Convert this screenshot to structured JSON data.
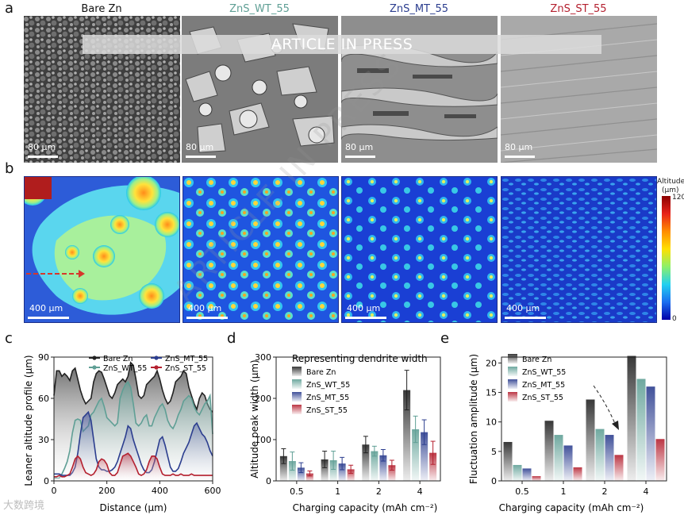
{
  "panel_letters": {
    "a": "a",
    "b": "b",
    "c": "c",
    "d": "d",
    "e": "e"
  },
  "banner": "ARTICLE IN PRESS",
  "watermark": "ARTICLE IN PRESS",
  "logo_text": "大数跨境",
  "colors": {
    "bare": "#222222",
    "wt": "#5f9f95",
    "mt": "#2c3e8f",
    "st": "#b4202f"
  },
  "panel_a": {
    "titles": [
      {
        "text": "Bare Zn",
        "color": "#111111"
      },
      {
        "text": "ZnS_WT_55",
        "color": "#5f9f95"
      },
      {
        "text": "ZnS_MT_55",
        "color": "#2c3e8f"
      },
      {
        "text": "ZnS_ST_55",
        "color": "#b4202f"
      }
    ],
    "scale_label": "80 μm"
  },
  "panel_b": {
    "scale_label": "400 μm",
    "colorbar_title": "Altitude",
    "colorbar_unit": "(μm)",
    "colorbar_max": "120",
    "colorbar_min": "0"
  },
  "chart_data": [
    {
      "panel": "c",
      "type": "area",
      "xlabel": "Distance (μm)",
      "ylabel": "Leaner altitude profile (μm)",
      "xlim": [
        0,
        600
      ],
      "ylim": [
        0,
        90
      ],
      "xticks": [
        "0",
        "200",
        "400",
        "600"
      ],
      "yticks": [
        "0",
        "30",
        "60",
        "90"
      ],
      "legend": [
        "Bare Zn",
        "ZnS_WT_55",
        "ZnS_MT_55",
        "ZnS_ST_55"
      ],
      "series": [
        {
          "name": "Bare Zn",
          "x": [
            0,
            10,
            20,
            30,
            40,
            50,
            60,
            70,
            80,
            90,
            100,
            110,
            120,
            130,
            140,
            150,
            160,
            170,
            180,
            190,
            200,
            210,
            220,
            230,
            240,
            250,
            260,
            270,
            280,
            290,
            300,
            310,
            320,
            330,
            340,
            350,
            360,
            370,
            380,
            390,
            400,
            410,
            420,
            430,
            440,
            450,
            460,
            470,
            480,
            490,
            500,
            510,
            520,
            530,
            540,
            550,
            560,
            570,
            580,
            590,
            600
          ],
          "y": [
            62,
            80,
            80,
            76,
            78,
            76,
            73,
            80,
            82,
            74,
            66,
            60,
            56,
            58,
            60,
            72,
            78,
            80,
            79,
            74,
            68,
            62,
            60,
            64,
            70,
            72,
            74,
            72,
            76,
            86,
            84,
            74,
            62,
            60,
            62,
            70,
            72,
            74,
            76,
            80,
            74,
            66,
            60,
            56,
            58,
            64,
            72,
            74,
            76,
            80,
            78,
            68,
            62,
            56,
            52,
            60,
            64,
            62,
            56,
            52,
            50
          ]
        },
        {
          "name": "ZnS_WT_55",
          "x": [
            0,
            10,
            20,
            30,
            40,
            50,
            60,
            70,
            80,
            90,
            100,
            110,
            120,
            130,
            140,
            150,
            160,
            170,
            180,
            190,
            200,
            210,
            220,
            230,
            240,
            250,
            260,
            270,
            280,
            290,
            300,
            310,
            320,
            330,
            340,
            350,
            360,
            370,
            380,
            390,
            400,
            410,
            420,
            430,
            440,
            450,
            460,
            470,
            480,
            490,
            500,
            510,
            520,
            530,
            540,
            550,
            560,
            570,
            580,
            590,
            600
          ],
          "y": [
            2,
            2,
            2,
            5,
            9,
            14,
            22,
            35,
            44,
            45,
            44,
            36,
            38,
            40,
            48,
            50,
            54,
            58,
            60,
            54,
            46,
            44,
            42,
            40,
            42,
            60,
            66,
            70,
            72,
            68,
            56,
            42,
            40,
            42,
            46,
            48,
            40,
            40,
            46,
            50,
            54,
            56,
            52,
            44,
            40,
            38,
            42,
            48,
            52,
            58,
            60,
            62,
            60,
            54,
            50,
            48,
            52,
            56,
            58,
            62,
            34
          ]
        },
        {
          "name": "ZnS_MT_55",
          "x": [
            0,
            10,
            20,
            30,
            40,
            50,
            60,
            70,
            80,
            90,
            100,
            110,
            120,
            130,
            140,
            150,
            160,
            170,
            180,
            190,
            200,
            210,
            220,
            230,
            240,
            250,
            260,
            270,
            280,
            290,
            300,
            310,
            320,
            330,
            340,
            350,
            360,
            370,
            380,
            390,
            400,
            410,
            420,
            430,
            440,
            450,
            460,
            470,
            480,
            490,
            500,
            510,
            520,
            530,
            540,
            550,
            560,
            570,
            580,
            590,
            600
          ],
          "y": [
            5,
            5,
            5,
            4,
            4,
            4,
            4,
            6,
            10,
            20,
            34,
            46,
            48,
            50,
            44,
            30,
            16,
            10,
            8,
            8,
            7,
            7,
            8,
            10,
            14,
            20,
            26,
            32,
            40,
            38,
            30,
            24,
            18,
            12,
            8,
            6,
            6,
            8,
            14,
            22,
            30,
            32,
            26,
            18,
            10,
            7,
            7,
            9,
            14,
            20,
            24,
            28,
            34,
            40,
            42,
            38,
            34,
            32,
            28,
            22,
            18
          ]
        },
        {
          "name": "ZnS_ST_55",
          "x": [
            0,
            10,
            20,
            30,
            40,
            50,
            60,
            70,
            80,
            90,
            100,
            110,
            120,
            130,
            140,
            150,
            160,
            170,
            180,
            190,
            200,
            210,
            220,
            230,
            240,
            250,
            260,
            270,
            280,
            290,
            300,
            310,
            320,
            330,
            340,
            350,
            360,
            370,
            380,
            390,
            400,
            410,
            420,
            430,
            440,
            450,
            460,
            470,
            480,
            490,
            500,
            510,
            520,
            530,
            540,
            550,
            560,
            570,
            580,
            590,
            600
          ],
          "y": [
            3,
            3,
            4,
            3,
            3,
            4,
            5,
            10,
            16,
            18,
            16,
            10,
            6,
            5,
            4,
            5,
            8,
            14,
            16,
            15,
            12,
            6,
            4,
            4,
            6,
            12,
            18,
            19,
            20,
            18,
            14,
            10,
            5,
            4,
            5,
            8,
            14,
            18,
            18,
            16,
            10,
            5,
            4,
            4,
            4,
            5,
            4,
            4,
            5,
            4,
            4,
            4,
            5,
            4,
            4,
            4,
            4,
            4,
            4,
            4,
            4
          ]
        }
      ]
    },
    {
      "panel": "d",
      "type": "bar",
      "title": "Representing dendrite width",
      "xlabel": "Charging capacity (mAh cm⁻²)",
      "ylabel": "Altitude peak width (μm)",
      "categories": [
        "0.5",
        "1",
        "2",
        "4"
      ],
      "ylim": [
        0,
        300
      ],
      "yticks": [
        "0",
        "100",
        "200",
        "300"
      ],
      "series": [
        {
          "name": "Bare Zn",
          "values": [
            60,
            52,
            88,
            220
          ],
          "errors": [
            18,
            20,
            20,
            48
          ]
        },
        {
          "name": "ZnS_WT_55",
          "values": [
            48,
            50,
            72,
            125
          ],
          "errors": [
            22,
            22,
            12,
            32
          ]
        },
        {
          "name": "ZnS_MT_55",
          "values": [
            32,
            42,
            62,
            118
          ],
          "errors": [
            12,
            15,
            14,
            30
          ]
        },
        {
          "name": "ZnS_ST_55",
          "values": [
            18,
            28,
            38,
            68
          ],
          "errors": [
            6,
            10,
            12,
            28
          ]
        }
      ]
    },
    {
      "panel": "e",
      "type": "bar",
      "xlabel": "Charging capacity (mAh cm⁻²)",
      "ylabel": "Fluctuation amplitude (μm)",
      "categories": [
        "0.5",
        "1",
        "2",
        "4"
      ],
      "ylim": [
        0,
        21
      ],
      "yticks": [
        "0",
        "5",
        "10",
        "15",
        "20"
      ],
      "series": [
        {
          "name": "Bare Zn",
          "values": [
            6.6,
            10.2,
            13.8,
            21.2
          ]
        },
        {
          "name": "ZnS_WT_55",
          "values": [
            2.7,
            7.8,
            8.8,
            17.3
          ]
        },
        {
          "name": "ZnS_MT_55",
          "values": [
            2.1,
            6.0,
            7.8,
            16.0
          ]
        },
        {
          "name": "ZnS_ST_55",
          "values": [
            0.8,
            2.3,
            4.4,
            7.1
          ]
        }
      ]
    }
  ]
}
